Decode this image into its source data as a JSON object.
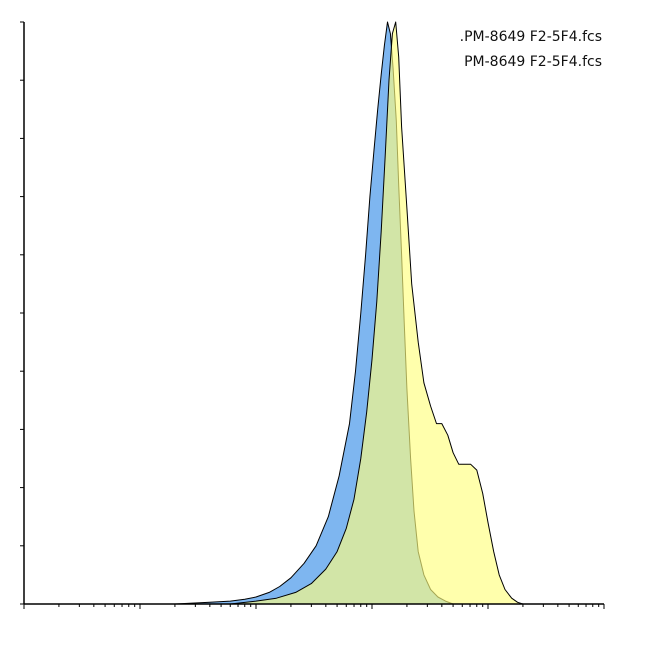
{
  "chart_data": {
    "type": "area",
    "title": "",
    "xlabel": "",
    "ylabel": "",
    "x_scale": "log",
    "xlim": [
      1,
      100000
    ],
    "ylim": [
      0,
      100
    ],
    "grid": false,
    "legend_position": "top-right",
    "series": [
      {
        "name": ".PM-8649 F2-5F4.fcs",
        "color": "#7eb6f0",
        "x": [
          20,
          40,
          60,
          80,
          100,
          130,
          160,
          200,
          260,
          330,
          420,
          520,
          640,
          720,
          800,
          880,
          960,
          1040,
          1120,
          1200,
          1280,
          1360,
          1440,
          1520,
          1620,
          1700,
          1800,
          1900,
          2000,
          2150,
          2300,
          2500,
          2800,
          3200,
          3700,
          4300,
          5000
        ],
        "y": [
          0,
          0.3,
          0.5,
          0.8,
          1.2,
          2,
          3,
          4.5,
          7,
          10,
          15,
          22,
          31,
          40,
          50,
          60,
          70,
          78,
          85,
          91,
          96,
          100,
          98,
          92,
          83,
          72,
          60,
          48,
          37,
          25,
          16,
          9,
          5,
          2.5,
          1.2,
          0.5,
          0
        ]
      },
      {
        "name": "PM-8649 F2-5F4.fcs",
        "color": "#ffff80",
        "x": [
          60,
          100,
          150,
          220,
          300,
          400,
          500,
          600,
          700,
          800,
          900,
          1000,
          1100,
          1200,
          1300,
          1400,
          1500,
          1600,
          1700,
          1800,
          2000,
          2200,
          2500,
          2800,
          3200,
          3600,
          4000,
          4500,
          5000,
          5600,
          6300,
          7100,
          8000,
          9000,
          10000,
          11200,
          12500,
          14000,
          16000,
          18000,
          20000
        ],
        "y": [
          0,
          0.5,
          1,
          2,
          3.5,
          6,
          9,
          13,
          18,
          25,
          33,
          42,
          52,
          64,
          77,
          90,
          98,
          100,
          94,
          82,
          68,
          55,
          45,
          38,
          34,
          31,
          31,
          29,
          26,
          24,
          24,
          24,
          23,
          19,
          14,
          9,
          5,
          2.5,
          1,
          0.3,
          0
        ]
      }
    ]
  }
}
